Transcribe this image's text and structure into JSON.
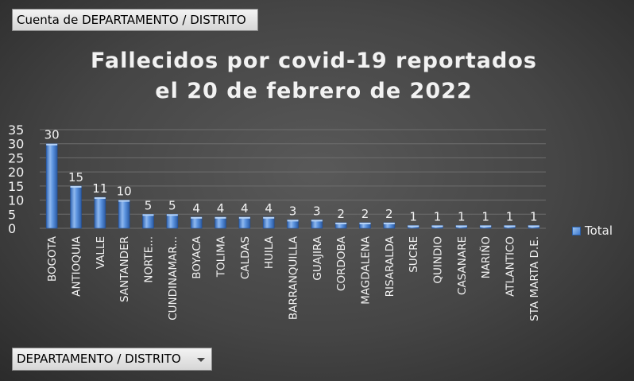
{
  "field_button_label": "Cuenta de DEPARTAMENTO / DISTRITO",
  "filter_button_label": "DEPARTAMENTO / DISTRITO",
  "colors": {
    "bar": "#4a86d8",
    "text": "#f2f2f2"
  },
  "chart_data": {
    "type": "bar",
    "title": "Fallecidos por covid-19 reportados el 20 de febrero de 2022",
    "title_lines": [
      "Fallecidos por covid-19 reportados",
      "el 20 de febrero de 2022"
    ],
    "categories": [
      "BOGOTA",
      "ANTIOQUIA",
      "VALLE",
      "SANTANDER",
      "NORTE...",
      "CUNDINAMAR...",
      "BOYACA",
      "TOLIMA",
      "CALDAS",
      "HUILA",
      "BARRANQUILLA",
      "GUAJIRA",
      "CORDOBA",
      "MAGDALENA",
      "RISARALDA",
      "SUCRE",
      "QUINDIO",
      "CASANARE",
      "NARIÑO",
      "ATLANTICO",
      "STA MARTA D.E."
    ],
    "series": [
      {
        "name": "Total",
        "values": [
          30,
          15,
          11,
          10,
          5,
          5,
          4,
          4,
          4,
          4,
          3,
          3,
          2,
          2,
          2,
          1,
          1,
          1,
          1,
          1,
          1
        ]
      }
    ],
    "ylim": [
      0,
      35
    ],
    "yticks": [
      0,
      5,
      10,
      15,
      20,
      25,
      30,
      35
    ],
    "grid": true,
    "legend": "right"
  }
}
